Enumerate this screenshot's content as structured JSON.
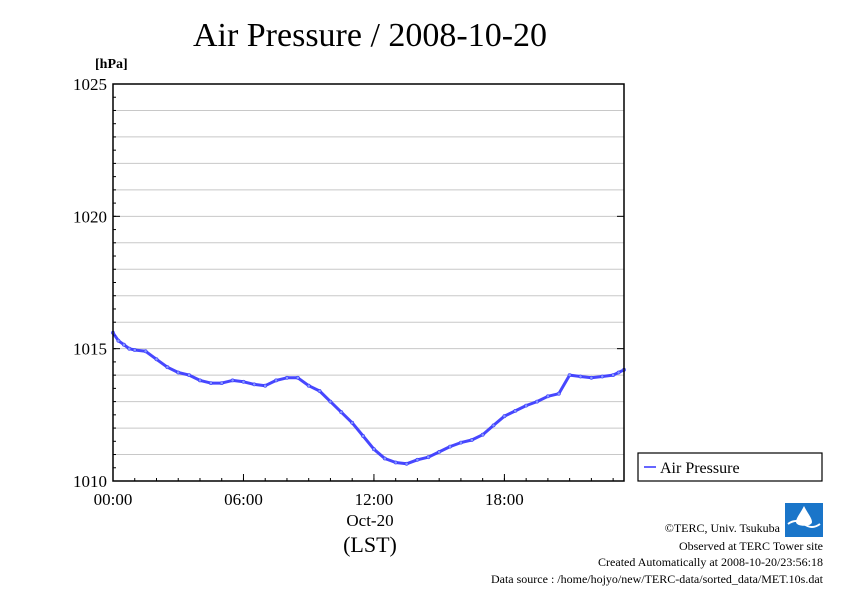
{
  "chart_data": {
    "type": "line",
    "title": "Air Pressure / 2008-10-20",
    "ylabel": "[hPa]",
    "xlabel": "(LST)",
    "date_label": "Oct-20",
    "ylim": [
      1010,
      1025
    ],
    "xlim": [
      0,
      23.5
    ],
    "y_ticks": [
      1010,
      1015,
      1020,
      1025
    ],
    "y_tick_labels": [
      "1010",
      "1015",
      "1020",
      "1025"
    ],
    "y_gridlines": [
      1011,
      1012,
      1013,
      1014,
      1015,
      1016,
      1017,
      1018,
      1019,
      1020,
      1021,
      1022,
      1023,
      1024
    ],
    "x_ticks": [
      0,
      6,
      12,
      18
    ],
    "x_tick_labels": [
      "00:00",
      "06:00",
      "12:00",
      "18:00"
    ],
    "grid": "horizontal",
    "legend_position": "bottom-right-outside",
    "series": [
      {
        "name": "Air Pressure",
        "color": "#3333ff",
        "x": [
          0.0,
          0.25,
          0.5,
          0.75,
          1.0,
          1.5,
          2.0,
          2.5,
          3.0,
          3.5,
          4.0,
          4.5,
          5.0,
          5.5,
          6.0,
          6.5,
          7.0,
          7.5,
          8.0,
          8.5,
          9.0,
          9.5,
          10.0,
          10.5,
          11.0,
          11.5,
          12.0,
          12.5,
          13.0,
          13.5,
          14.0,
          14.5,
          15.0,
          15.5,
          16.0,
          16.5,
          17.0,
          17.5,
          18.0,
          18.5,
          19.0,
          19.5,
          20.0,
          20.5,
          21.0,
          21.5,
          22.0,
          22.5,
          23.0,
          23.25,
          23.5
        ],
        "y": [
          1015.6,
          1015.3,
          1015.15,
          1015.0,
          1014.95,
          1014.9,
          1014.6,
          1014.3,
          1014.1,
          1014.0,
          1013.8,
          1013.7,
          1013.7,
          1013.8,
          1013.75,
          1013.65,
          1013.6,
          1013.8,
          1013.9,
          1013.9,
          1013.6,
          1013.4,
          1013.0,
          1012.6,
          1012.2,
          1011.7,
          1011.2,
          1010.85,
          1010.7,
          1010.65,
          1010.8,
          1010.9,
          1011.1,
          1011.3,
          1011.45,
          1011.55,
          1011.75,
          1012.1,
          1012.45,
          1012.65,
          1012.85,
          1013.0,
          1013.2,
          1013.3,
          1014.0,
          1013.95,
          1013.9,
          1013.95,
          1014.0,
          1014.1,
          1014.2
        ]
      }
    ]
  },
  "legend": {
    "label": "Air Pressure"
  },
  "footer": {
    "copyright": "©TERC, Univ. Tsukuba",
    "observed": "Observed at TERC Tower site",
    "created": "Created Automatically at 2008-10-20/23:56:18",
    "source": "Data source : /home/hojyo/new/TERC-data/sorted_data/MET.10s.dat",
    "logo_text": "TERC"
  }
}
